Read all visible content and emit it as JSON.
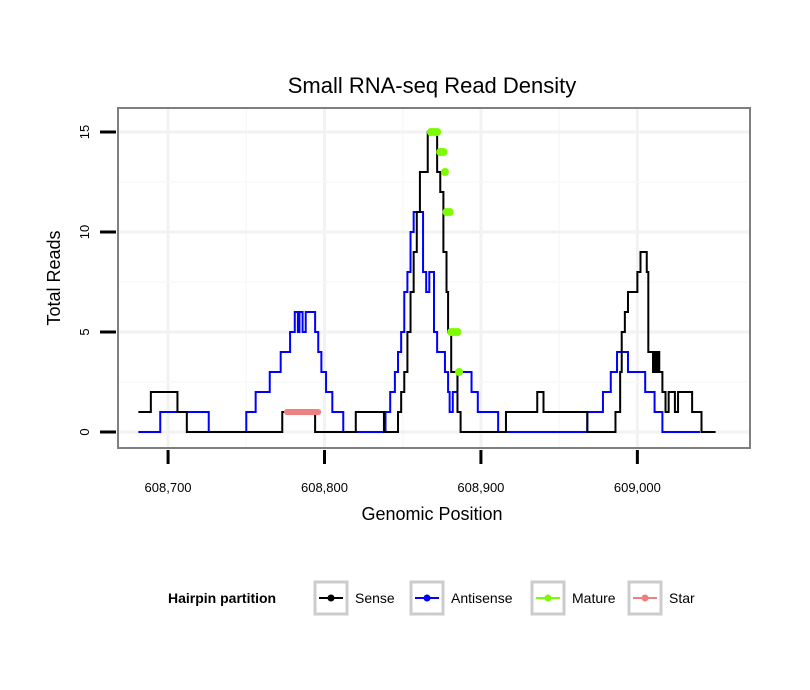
{
  "chart_data": {
    "type": "line",
    "title": "Small RNA-seq Read Density",
    "xlabel": "Genomic Position",
    "ylabel": "Total Reads",
    "xlim": [
      608668,
      609072
    ],
    "ylim": [
      -0.8,
      16.2
    ],
    "x_ticks": [
      608700,
      608800,
      608900,
      609000
    ],
    "x_tick_labels": [
      "608,700",
      "608,800",
      "608,900",
      "609,000"
    ],
    "y_ticks": [
      0,
      5,
      10,
      15
    ],
    "y_tick_labels": [
      "0",
      "5",
      "10",
      "15"
    ],
    "grid": true,
    "legend_position": "bottom",
    "legend_title": "Hairpin partition",
    "colors": {
      "sense": "#000000",
      "antisense": "#0000ff",
      "mature": "#7cfc00",
      "star": "#f08080"
    },
    "series": [
      {
        "name": "Sense",
        "color": "#000000",
        "kind": "step",
        "points": [
          [
            608681,
            1
          ],
          [
            608689,
            2
          ],
          [
            608706,
            1
          ],
          [
            608712,
            0
          ],
          [
            608745,
            0
          ],
          [
            608747,
            0
          ],
          [
            608771,
            0
          ],
          [
            608773,
            1
          ],
          [
            608794,
            0
          ],
          [
            608818,
            0
          ],
          [
            608820,
            1
          ],
          [
            608838,
            0
          ],
          [
            608845,
            0
          ],
          [
            608847,
            1
          ],
          [
            608849,
            2
          ],
          [
            608851,
            3
          ],
          [
            608853,
            5
          ],
          [
            608855,
            7
          ],
          [
            608857,
            9
          ],
          [
            608859,
            11
          ],
          [
            608861,
            13
          ],
          [
            608866,
            15
          ],
          [
            608872,
            13
          ],
          [
            608874,
            12
          ],
          [
            608876,
            9
          ],
          [
            608878,
            7
          ],
          [
            608879,
            5
          ],
          [
            608881,
            3
          ],
          [
            608885,
            1
          ],
          [
            608887,
            0
          ],
          [
            608914,
            0
          ],
          [
            608916,
            1
          ],
          [
            608936,
            2
          ],
          [
            608940,
            1
          ],
          [
            608968,
            0
          ],
          [
            608984,
            0
          ],
          [
            608986,
            1
          ],
          [
            608989,
            3
          ],
          [
            608990,
            5
          ],
          [
            608992,
            6
          ],
          [
            608994,
            7
          ],
          [
            609000,
            8
          ],
          [
            609002,
            9
          ],
          [
            609006,
            8
          ],
          [
            609007,
            4
          ],
          [
            609010,
            3
          ],
          [
            609011,
            4
          ],
          [
            609012,
            3
          ],
          [
            609013,
            4
          ],
          [
            609014,
            3
          ],
          [
            609016,
            2
          ],
          [
            609018,
            1
          ],
          [
            609020,
            2
          ],
          [
            609024,
            1
          ],
          [
            609026,
            2
          ],
          [
            609035,
            1
          ],
          [
            609041,
            0
          ],
          [
            609050,
            0
          ]
        ]
      },
      {
        "name": "Antisense",
        "color": "#0000ff",
        "kind": "step",
        "points": [
          [
            608681,
            0
          ],
          [
            608695,
            1
          ],
          [
            608718,
            1
          ],
          [
            608726,
            0
          ],
          [
            608747,
            0
          ],
          [
            608750,
            1
          ],
          [
            608756,
            2
          ],
          [
            608765,
            3
          ],
          [
            608772,
            4
          ],
          [
            608778,
            5
          ],
          [
            608781,
            6
          ],
          [
            608783,
            5
          ],
          [
            608784,
            6
          ],
          [
            608786,
            5
          ],
          [
            608788,
            6
          ],
          [
            608794,
            5
          ],
          [
            608796,
            4
          ],
          [
            608798,
            3
          ],
          [
            608801,
            2
          ],
          [
            608805,
            1
          ],
          [
            608812,
            0
          ],
          [
            608838,
            0
          ],
          [
            608839,
            1
          ],
          [
            608842,
            2
          ],
          [
            608845,
            3
          ],
          [
            608847,
            4
          ],
          [
            608849,
            5
          ],
          [
            608851,
            7
          ],
          [
            608853,
            8
          ],
          [
            608855,
            10
          ],
          [
            608857,
            11
          ],
          [
            608863,
            8
          ],
          [
            608865,
            7
          ],
          [
            608867,
            8
          ],
          [
            608870,
            5
          ],
          [
            608872,
            4
          ],
          [
            608877,
            3
          ],
          [
            608879,
            2
          ],
          [
            608880,
            1
          ],
          [
            608882,
            2
          ],
          [
            608885,
            3
          ],
          [
            608890,
            3
          ],
          [
            608894,
            2
          ],
          [
            608898,
            1
          ],
          [
            608908,
            1
          ],
          [
            608911,
            0
          ],
          [
            608965,
            0
          ],
          [
            608968,
            1
          ],
          [
            608978,
            2
          ],
          [
            608983,
            3
          ],
          [
            608987,
            4
          ],
          [
            608994,
            3
          ],
          [
            609005,
            2
          ],
          [
            609011,
            1
          ],
          [
            609016,
            0
          ],
          [
            609040,
            0
          ]
        ]
      },
      {
        "name": "Mature",
        "color": "#7cfc00",
        "kind": "points",
        "points": [
          [
            608868,
            15
          ],
          [
            608870,
            15
          ],
          [
            608872,
            15
          ],
          [
            608874,
            14
          ],
          [
            608876,
            14
          ],
          [
            608877,
            13
          ],
          [
            608878,
            11
          ],
          [
            608880,
            11
          ],
          [
            608881,
            5
          ],
          [
            608883,
            5
          ],
          [
            608885,
            5
          ],
          [
            608886,
            3
          ]
        ]
      },
      {
        "name": "Star",
        "color": "#f08080",
        "kind": "segment",
        "points": [
          [
            608776,
            1
          ],
          [
            608796,
            1
          ]
        ]
      }
    ]
  }
}
